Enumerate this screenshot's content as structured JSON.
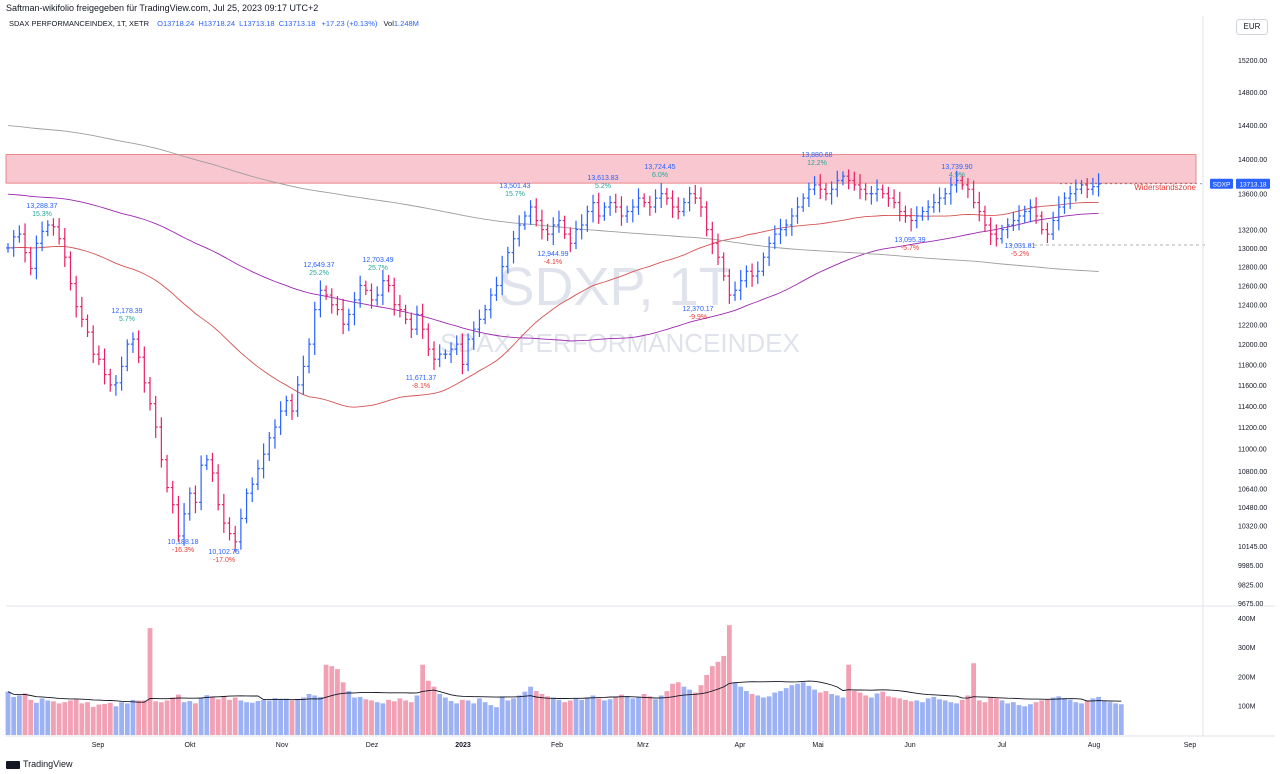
{
  "header": {
    "caption": "Saftman-wikifolio freigegeben für TradingView.com, Jul 25, 2023 09:17 UTC+2",
    "symbol_line": "SDAX PERFORMANCEINDEX, 1T, XETR",
    "open": "O13718.24",
    "high": "H13718.24",
    "low": "L13713.18",
    "close": "C13713.18",
    "change": "+17.23 (+0.13%)",
    "volume_label": "Vol",
    "volume_value": "1.248M",
    "currency": "EUR"
  },
  "watermark": {
    "symbol": "SDXP, 1T",
    "name": "SDAX PERFORMANCEINDEX"
  },
  "price_tag": {
    "ticker": "SDXP",
    "value": "13713.18"
  },
  "footer": {
    "brand": "TradingView"
  },
  "colors": {
    "up": "#2962ff",
    "down": "#e91e63",
    "zone": "#f8c7cf",
    "zone_border": "#e57373",
    "ma_short": "#d65252",
    "ma_mid": "#9c27b0",
    "ma_long": "#9e9e9e"
  },
  "chart_data": {
    "type": "ohlc",
    "price_axis": {
      "min": 9675,
      "max": 15400,
      "ticks": [
        "15200.00",
        "14800.00",
        "14400.00",
        "14000.00",
        "13600.00",
        "13200.00",
        "13000.00",
        "12800.00",
        "12600.00",
        "12400.00",
        "12200.00",
        "12000.00",
        "11800.00",
        "11600.00",
        "11400.00",
        "11200.00",
        "11000.00",
        "10800.00",
        "10640.00",
        "10480.00",
        "10320.00",
        "10145.00",
        "9985.00",
        "9825.00",
        "9675.00"
      ],
      "scale": "log"
    },
    "volume_axis": {
      "ticks": [
        "400M",
        "300M",
        "200M",
        "100M"
      ]
    },
    "time_axis": [
      "Sep",
      "Okt",
      "Nov",
      "Dez",
      "2023",
      "Feb",
      "Mrz",
      "Apr",
      "Mai",
      "Jun",
      "Jul",
      "Aug",
      "Sep"
    ],
    "resistance_zone": {
      "label": "Widerstandszone",
      "low": 13720,
      "high": 14050
    },
    "support_line": 13031.81,
    "annotations": [
      {
        "price": "13,288.37",
        "pct": "15.3%",
        "kind": "high"
      },
      {
        "price": "12,178.39",
        "pct": "5.7%",
        "kind": "high"
      },
      {
        "price": "10,188.18",
        "pct": "-16.3%",
        "kind": "low"
      },
      {
        "price": "10,102.75",
        "pct": "-17.0%",
        "kind": "low"
      },
      {
        "price": "12,649.37",
        "pct": "25.2%",
        "kind": "high"
      },
      {
        "price": "12,703.49",
        "pct": "25.7%",
        "kind": "high"
      },
      {
        "price": "11,671.37",
        "pct": "-8.1%",
        "kind": "low"
      },
      {
        "price": "13,501.43",
        "pct": "15.7%",
        "kind": "high"
      },
      {
        "price": "12,944.99",
        "pct": "-4.1%",
        "kind": "low"
      },
      {
        "price": "13,613.83",
        "pct": "5.2%",
        "kind": "high"
      },
      {
        "price": "13,724.45",
        "pct": "6.0%",
        "kind": "high"
      },
      {
        "price": "12,370.17",
        "pct": "-9.9%",
        "kind": "low"
      },
      {
        "price": "13,880.68",
        "pct": "12.2%",
        "kind": "high"
      },
      {
        "price": "13,095.39",
        "pct": "-5.7%",
        "kind": "low"
      },
      {
        "price": "13,739.90",
        "pct": "4.9%",
        "kind": "high"
      },
      {
        "price": "13,031.81",
        "pct": "-5.2%",
        "kind": "low"
      }
    ],
    "closes": [
      13000,
      13120,
      13150,
      12950,
      12780,
      13050,
      13180,
      13250,
      13230,
      13100,
      12900,
      12620,
      12380,
      12250,
      12120,
      11900,
      11850,
      11700,
      11600,
      11620,
      11780,
      12000,
      12050,
      11870,
      11620,
      11420,
      11200,
      10900,
      10650,
      10500,
      10230,
      10420,
      10600,
      10520,
      10850,
      10900,
      10780,
      10500,
      10340,
      10250,
      10180,
      10380,
      10600,
      10680,
      10820,
      10950,
      11100,
      11200,
      11350,
      11450,
      11350,
      11600,
      11780,
      12000,
      12350,
      12550,
      12500,
      12400,
      12350,
      12200,
      12300,
      12450,
      12600,
      12550,
      12450,
      12500,
      12650,
      12600,
      12400,
      12350,
      12250,
      12150,
      12300,
      12150,
      11950,
      11850,
      11900,
      11900,
      11950,
      12000,
      11800,
      12050,
      12150,
      12250,
      12350,
      12500,
      12600,
      12800,
      12950,
      13100,
      13250,
      13350,
      13450,
      13300,
      13200,
      13150,
      13250,
      13300,
      13150,
      13050,
      13200,
      13250,
      13400,
      13500,
      13350,
      13450,
      13500,
      13450,
      13350,
      13400,
      13450,
      13550,
      13500,
      13450,
      13550,
      13600,
      13550,
      13450,
      13400,
      13500,
      13600,
      13550,
      13450,
      13200,
      13050,
      12900,
      12700,
      12500,
      12550,
      12650,
      12750,
      12700,
      12750,
      12900,
      13050,
      13150,
      13200,
      13250,
      13350,
      13450,
      13550,
      13650,
      13700,
      13650,
      13600,
      13650,
      13750,
      13800,
      13750,
      13700,
      13650,
      13600,
      13600,
      13650,
      13600,
      13550,
      13500,
      13400,
      13350,
      13300,
      13350,
      13400,
      13450,
      13500,
      13550,
      13600,
      13700,
      13750,
      13700,
      13650,
      13500,
      13400,
      13250,
      13150,
      13100,
      13200,
      13250,
      13300,
      13350,
      13400,
      13450,
      13350,
      13200,
      13150,
      13300,
      13450,
      13550,
      13600,
      13650,
      13700,
      13650,
      13680,
      13710
    ],
    "volumes": [
      148,
      130,
      135,
      142,
      120,
      110,
      125,
      118,
      115,
      108,
      112,
      118,
      122,
      108,
      112,
      96,
      104,
      106,
      110,
      98,
      112,
      108,
      120,
      118,
      118,
      365,
      115,
      112,
      118,
      128,
      138,
      112,
      116,
      108,
      128,
      136,
      128,
      122,
      132,
      120,
      128,
      118,
      112,
      110,
      116,
      120,
      118,
      126,
      120,
      124,
      118,
      122,
      128,
      140,
      135,
      130,
      240,
      235,
      225,
      180,
      150,
      128,
      130,
      122,
      118,
      112,
      108,
      120,
      115,
      125,
      118,
      112,
      135,
      240,
      185,
      165,
      140,
      128,
      116,
      108,
      120,
      118,
      108,
      125,
      112,
      102,
      95,
      130,
      118,
      125,
      135,
      148,
      165,
      150,
      140,
      132,
      128,
      120,
      112,
      118,
      125,
      120,
      128,
      135,
      125,
      118,
      122,
      130,
      138,
      132,
      125,
      128,
      140,
      132,
      122,
      135,
      150,
      175,
      180,
      165,
      155,
      145,
      170,
      205,
      235,
      250,
      270,
      375,
      180,
      165,
      150,
      140,
      135,
      128,
      132,
      145,
      150,
      160,
      170,
      175,
      180,
      168,
      155,
      145,
      150,
      140,
      135,
      128,
      240,
      150,
      145,
      135,
      128,
      142,
      148,
      132,
      128,
      125,
      120,
      115,
      118,
      112,
      125,
      130,
      122,
      118,
      112,
      108,
      120,
      135,
      245,
      118,
      112,
      130,
      125,
      118,
      108,
      112,
      102,
      98,
      105,
      112,
      118,
      122,
      128,
      132,
      126,
      120,
      112,
      108,
      118,
      125,
      130,
      118,
      112,
      108,
      105
    ]
  }
}
